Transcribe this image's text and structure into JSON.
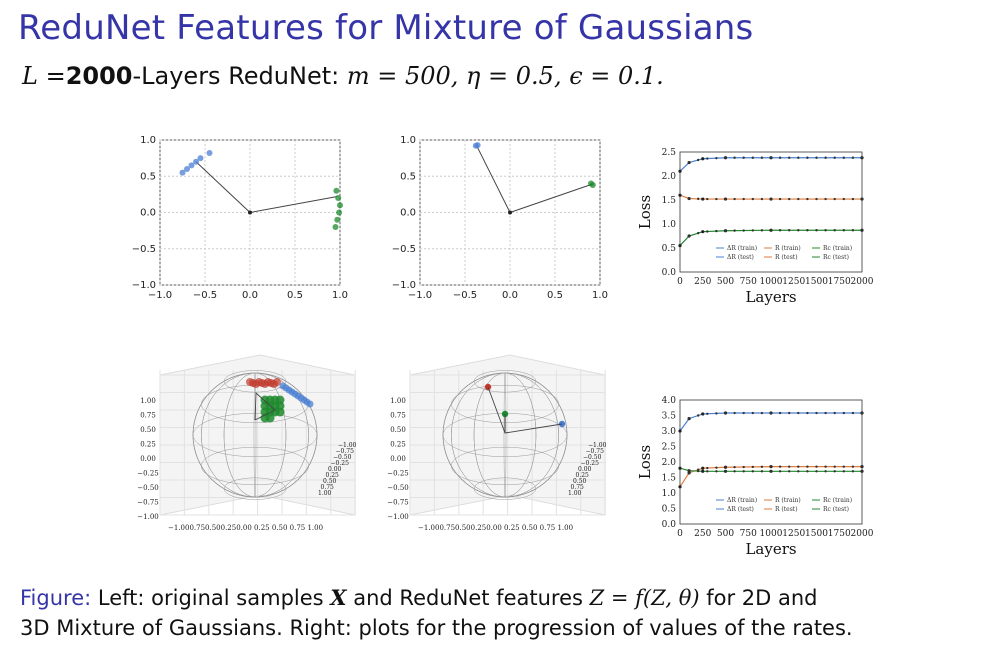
{
  "slide": {
    "title": "ReduNet Features for Mixture of Gaussians",
    "subtitle": {
      "L": "L",
      "eq": "=",
      "bold": "2000",
      "mid": "-Layers ReduNet: ",
      "params": "m = 500, η = 0.5, ϵ = 0.1."
    },
    "caption": {
      "label": "Figure:",
      "line1_a": " Left: original samples ",
      "X": "X",
      "line1_b": " and ReduNet features ",
      "formula": "Z = f(Z, θ)",
      "line1_c": " for 2D and",
      "line2": "3D Mixture of Gaussians. Right: plots for the progression of values of the rates."
    }
  },
  "colors": {
    "title": "#3535a8",
    "blue": "#4a7fd4",
    "green": "#1e8a2e",
    "orange": "#e07b39",
    "red": "#c0392b"
  },
  "chart_data": [
    {
      "type": "scatter",
      "title": "",
      "xlim": [
        -1.0,
        1.0
      ],
      "ylim": [
        -1.0,
        1.0
      ],
      "xticks": [
        "−1.0",
        "−0.5",
        "0.0",
        "0.5",
        "1.0"
      ],
      "yticks": [
        "1.0",
        "0.5",
        "0.0",
        "−0.5",
        "−1.0"
      ],
      "grid": true,
      "series": [
        {
          "values": [
            [
              -0.6,
              0.7
            ],
            [
              -0.65,
              0.65
            ],
            [
              -0.55,
              0.75
            ],
            [
              -0.7,
              0.6
            ],
            [
              -0.45,
              0.82
            ],
            [
              -0.75,
              0.55
            ]
          ]
        },
        {
          "values": [
            [
              0.98,
              0.2
            ],
            [
              1.0,
              0.1
            ],
            [
              0.99,
              0.0
            ],
            [
              0.97,
              -0.1
            ],
            [
              0.95,
              -0.2
            ],
            [
              0.96,
              0.3
            ]
          ]
        }
      ],
      "vectors": [
        [
          -0.6,
          0.7
        ],
        [
          0.97,
          0.22
        ]
      ]
    },
    {
      "type": "scatter",
      "title": "",
      "xlim": [
        -1.0,
        1.0
      ],
      "ylim": [
        -1.0,
        1.0
      ],
      "xticks": [
        "−1.0",
        "−0.5",
        "0.0",
        "0.5",
        "1.0"
      ],
      "yticks": [
        "1.0",
        "0.5",
        "0.0",
        "−0.5",
        "−1.0"
      ],
      "grid": true,
      "series": [
        {
          "values": [
            [
              -0.38,
              0.92
            ],
            [
              -0.36,
              0.93
            ]
          ]
        },
        {
          "values": [
            [
              0.9,
              0.4
            ],
            [
              0.92,
              0.38
            ]
          ]
        }
      ],
      "vectors": [
        [
          -0.37,
          0.92
        ],
        [
          0.91,
          0.39
        ]
      ]
    },
    {
      "type": "line",
      "xlabel": "Layers",
      "ylabel": "Loss",
      "xlim": [
        0,
        2000
      ],
      "ylim": [
        0,
        2.5
      ],
      "xticks": [
        "0",
        "250",
        "500",
        "750",
        "1000",
        "1250",
        "1500",
        "1750",
        "2000"
      ],
      "yticks": [
        "2.5",
        "2.0",
        "1.5",
        "1.0",
        "0.5",
        "0.0"
      ],
      "legend": [
        "ΔR (train)",
        "R (train)",
        "Rc (train)",
        "ΔR (test)",
        "R (test)",
        "Rc (test)"
      ],
      "series": [
        {
          "name": "ΔR (train)",
          "x": [
            0,
            100,
            250,
            500,
            1000,
            2000
          ],
          "values": [
            2.1,
            2.28,
            2.36,
            2.38,
            2.38,
            2.38
          ]
        },
        {
          "name": "R (train)",
          "x": [
            0,
            100,
            250,
            500,
            1000,
            2000
          ],
          "values": [
            1.6,
            1.53,
            1.52,
            1.52,
            1.52,
            1.52
          ]
        },
        {
          "name": "Rc (train)",
          "x": [
            0,
            100,
            250,
            500,
            1000,
            2000
          ],
          "values": [
            0.55,
            0.75,
            0.84,
            0.86,
            0.87,
            0.87
          ]
        }
      ]
    },
    {
      "type": "line",
      "xlabel": "Layers",
      "ylabel": "Loss",
      "xlim": [
        0,
        2000
      ],
      "ylim": [
        0,
        4.0
      ],
      "xticks": [
        "0",
        "250",
        "500",
        "750",
        "1000",
        "1250",
        "1500",
        "1750",
        "2000"
      ],
      "yticks": [
        "4.0",
        "3.5",
        "3.0",
        "2.5",
        "2.0",
        "1.5",
        "1.0",
        "0.5",
        "0.0"
      ],
      "legend": [
        "ΔR (train)",
        "R (train)",
        "Rc (train)",
        "ΔR (test)",
        "R (test)",
        "Rc (test)"
      ],
      "series": [
        {
          "name": "ΔR (train)",
          "x": [
            0,
            100,
            250,
            500,
            1000,
            2000
          ],
          "values": [
            3.0,
            3.4,
            3.55,
            3.58,
            3.58,
            3.58
          ]
        },
        {
          "name": "R (train)",
          "x": [
            0,
            100,
            250,
            500,
            1000,
            2000
          ],
          "values": [
            1.2,
            1.65,
            1.8,
            1.83,
            1.85,
            1.85
          ]
        },
        {
          "name": "Rc (train)",
          "x": [
            0,
            100,
            250,
            500,
            1000,
            2000
          ],
          "values": [
            1.8,
            1.72,
            1.7,
            1.7,
            1.7,
            1.7
          ]
        }
      ]
    }
  ],
  "sphere_ticks": {
    "z": [
      "1.00",
      "0.75",
      "0.50",
      "0.25",
      "0.00",
      "−0.25",
      "−0.50",
      "−0.75",
      "−1.00"
    ],
    "x": "−1.000.750.500.250.00 0.25 0.50 0.75 1.00",
    "y": [
      "1.00",
      "0.75",
      "0.50",
      "0.25",
      "0.00",
      "−0.25",
      "−0.50",
      "−0.75",
      "−1.00"
    ]
  }
}
